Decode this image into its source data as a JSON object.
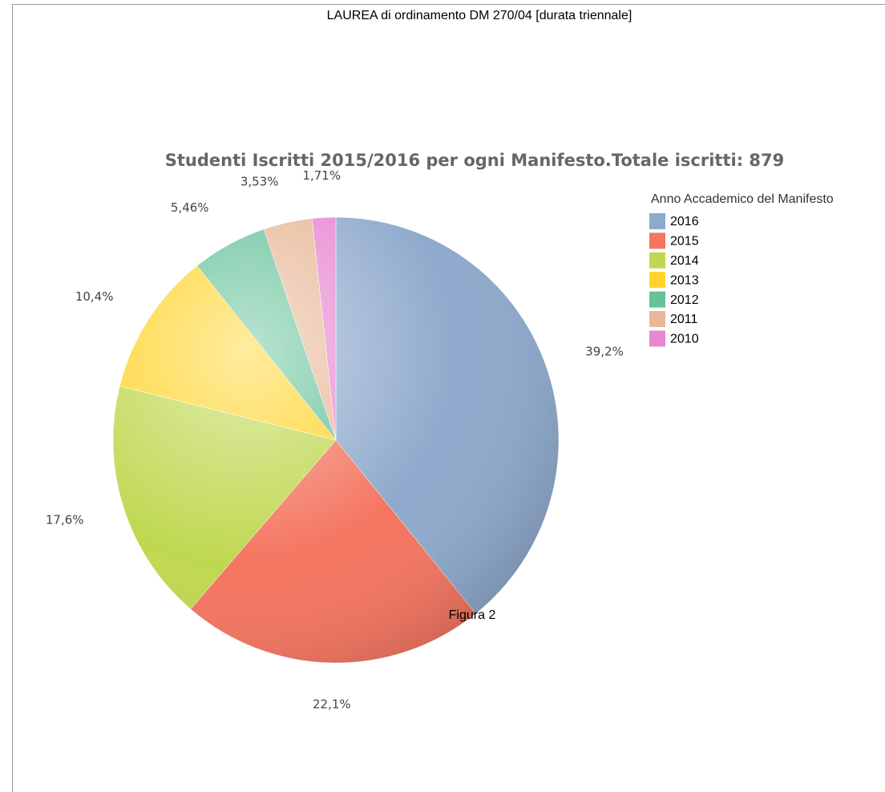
{
  "page_title": "LAUREA di ordinamento DM 270/04 [durata triennale]",
  "caption": "Figura 2",
  "chart_data": {
    "type": "pie",
    "title": "Studenti Iscritti 2015/2016 per ogni Manifesto.Totale iscritti: 879",
    "legend_title": "Anno Accademico del Manifesto",
    "legend": "top-right",
    "categories": [
      "2016",
      "2015",
      "2014",
      "2013",
      "2012",
      "2011",
      "2010"
    ],
    "values": [
      39.2,
      22.1,
      17.6,
      10.4,
      5.46,
      3.53,
      1.71
    ],
    "value_labels": [
      "39,2%",
      "22,1%",
      "17,6%",
      "10,4%",
      "5,46%",
      "3,53%",
      "1,71%"
    ],
    "colors": [
      "#8ea9cc",
      "#f47560",
      "#bfd850",
      "#ffd42a",
      "#66c29a",
      "#e8b898",
      "#e888d0"
    ]
  }
}
